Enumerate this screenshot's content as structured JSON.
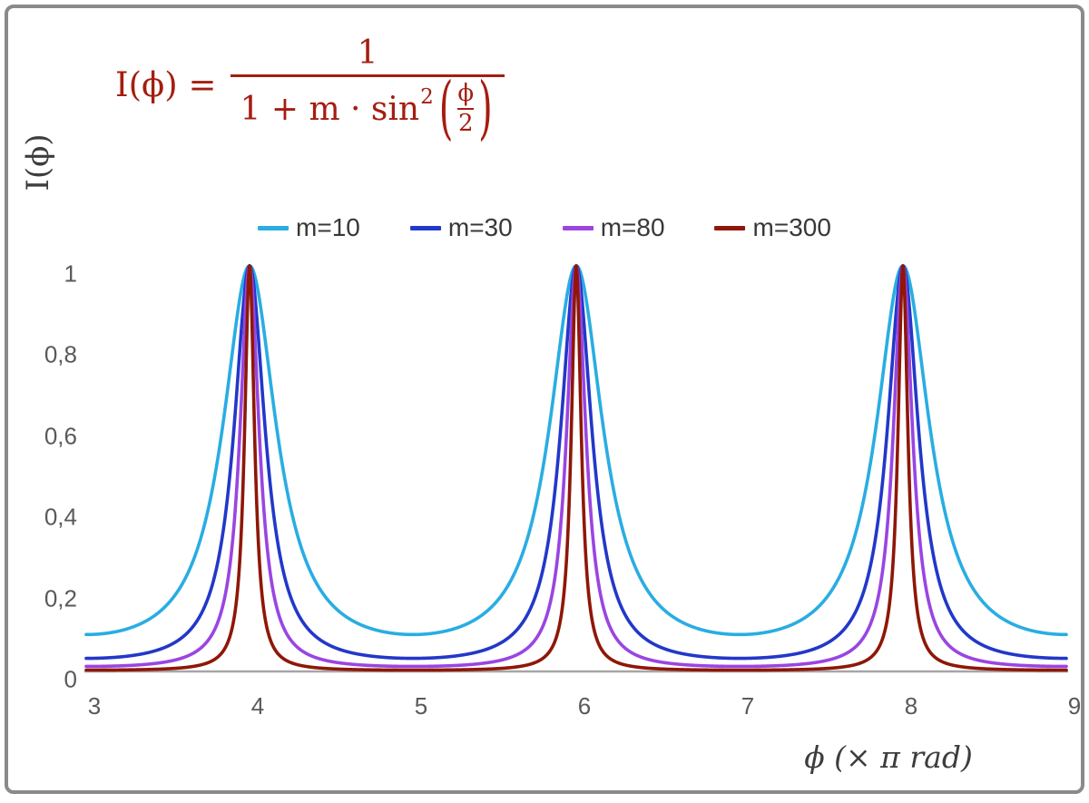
{
  "chart_data": {
    "type": "line",
    "title": "",
    "formula": {
      "lhs": "I(ϕ) =",
      "numerator": "1",
      "den_prefix": "1 + m · sin",
      "den_exponent": "2",
      "lparen": "(",
      "rparen": ")",
      "inner_numerator": "ϕ",
      "inner_denominator": "2",
      "color": "#a51d10"
    },
    "function": "I(x) = 1 / (1 + m * sin^2(pi*x/2)), x in units of pi rad",
    "x_axis": {
      "label": "ϕ  (× π rad)",
      "min": 3,
      "max": 9,
      "ticks": [
        "3",
        "4",
        "5",
        "6",
        "7",
        "8",
        "9"
      ],
      "tick_values": [
        3,
        4,
        5,
        6,
        7,
        8,
        9
      ]
    },
    "y_axis": {
      "label": "I(ϕ)",
      "min": 0,
      "max": 1,
      "ticks": [
        "0",
        "0,2",
        "0,4",
        "0,6",
        "0,8",
        "1"
      ],
      "tick_values": [
        0,
        0.2,
        0.4,
        0.6,
        0.8,
        1
      ]
    },
    "series": [
      {
        "name": "m=10",
        "m": 10,
        "color": "#29ade2"
      },
      {
        "name": "m=30",
        "m": 30,
        "color": "#2238c9"
      },
      {
        "name": "m=80",
        "m": 80,
        "color": "#9a45e2"
      },
      {
        "name": "m=300",
        "m": 300,
        "color": "#8e1708"
      }
    ],
    "peaks_at_x": [
      4,
      6,
      8
    ],
    "axis_color": "#a6a6a6",
    "tick_label_color": "#595959",
    "frame_border_color": "#8a8a8a",
    "grid": "off",
    "legend_position": "top-center"
  }
}
